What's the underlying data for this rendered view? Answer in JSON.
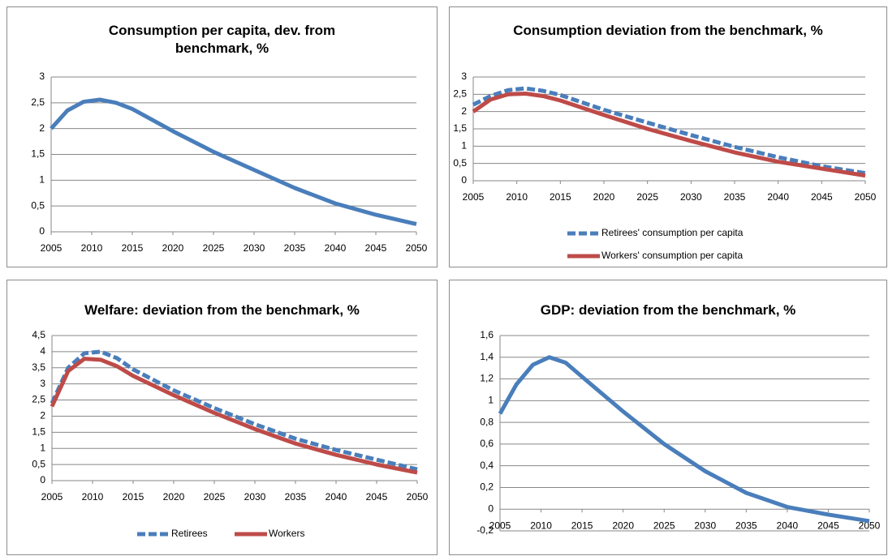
{
  "chart_data": [
    {
      "type": "line",
      "title": "Consumption per capita, dev. from benchmark, %",
      "x": [
        2005,
        2007,
        2009,
        2011,
        2013,
        2015,
        2020,
        2025,
        2030,
        2035,
        2040,
        2045,
        2050
      ],
      "values": [
        2.0,
        2.35,
        2.52,
        2.56,
        2.5,
        2.38,
        1.95,
        1.55,
        1.2,
        0.85,
        0.55,
        0.33,
        0.15
      ],
      "color": "#4a7ebb",
      "grid": true,
      "xlim": [
        2005,
        2050
      ],
      "xticks": [
        2005,
        2010,
        2015,
        2020,
        2025,
        2030,
        2035,
        2040,
        2045,
        2050
      ],
      "ylim": [
        0,
        3
      ],
      "yticks": [
        0,
        {
          "value": 0.5,
          "label": "0,5"
        },
        1,
        {
          "value": 1.5,
          "label": "1,5"
        },
        2,
        {
          "value": 2.5,
          "label": "2,5"
        },
        3
      ]
    },
    {
      "type": "line",
      "title": "Consumption deviation from the benchmark, %",
      "x": [
        2005,
        2007,
        2009,
        2011,
        2013,
        2015,
        2020,
        2025,
        2030,
        2035,
        2040,
        2045,
        2050
      ],
      "series": [
        {
          "name": "Retirees' consumption per capita",
          "color": "#4a7ebb",
          "dashed": true,
          "values": [
            2.2,
            2.45,
            2.62,
            2.67,
            2.6,
            2.48,
            2.05,
            1.68,
            1.32,
            0.98,
            0.68,
            0.42,
            0.22
          ]
        },
        {
          "name": "Workers' consumption per capita",
          "color": "#be4b48",
          "dashed": false,
          "values": [
            2.0,
            2.35,
            2.5,
            2.52,
            2.45,
            2.32,
            1.9,
            1.5,
            1.15,
            0.82,
            0.55,
            0.35,
            0.15
          ]
        }
      ],
      "legend": "bottom",
      "grid": true,
      "xlim": [
        2005,
        2050
      ],
      "xticks": [
        2005,
        2010,
        2015,
        2020,
        2025,
        2030,
        2035,
        2040,
        2045,
        2050
      ],
      "ylim": [
        0,
        3
      ],
      "yticks": [
        0,
        {
          "value": 0.5,
          "label": "0,5"
        },
        1,
        {
          "value": 1.5,
          "label": "1,5"
        },
        2,
        {
          "value": 2.5,
          "label": "2,5"
        },
        3
      ]
    },
    {
      "type": "line",
      "title": "Welfare: deviation from the benchmark, %",
      "x": [
        2005,
        2007,
        2009,
        2011,
        2013,
        2015,
        2020,
        2025,
        2030,
        2035,
        2040,
        2045,
        2050
      ],
      "series": [
        {
          "name": "Retirees",
          "color": "#4a7ebb",
          "dashed": true,
          "values": [
            2.4,
            3.5,
            3.95,
            4.0,
            3.8,
            3.45,
            2.8,
            2.25,
            1.75,
            1.3,
            0.95,
            0.65,
            0.35
          ]
        },
        {
          "name": "Workers",
          "color": "#be4b48",
          "dashed": false,
          "values": [
            2.3,
            3.4,
            3.78,
            3.75,
            3.55,
            3.25,
            2.65,
            2.1,
            1.6,
            1.15,
            0.8,
            0.5,
            0.25
          ]
        }
      ],
      "legend": "bottom",
      "grid": true,
      "xlim": [
        2005,
        2050
      ],
      "xticks": [
        2005,
        2010,
        2015,
        2020,
        2025,
        2030,
        2035,
        2040,
        2045,
        2050
      ],
      "ylim": [
        0,
        4.5
      ],
      "yticks": [
        0,
        {
          "value": 0.5,
          "label": "0,5"
        },
        1,
        {
          "value": 1.5,
          "label": "1,5"
        },
        2,
        {
          "value": 2.5,
          "label": "2,5"
        },
        3,
        {
          "value": 3.5,
          "label": "3,5"
        },
        4,
        {
          "value": 4.5,
          "label": "4,5"
        }
      ]
    },
    {
      "type": "line",
      "title": "GDP: deviation from the benchmark, %",
      "x": [
        2005,
        2007,
        2009,
        2011,
        2013,
        2015,
        2020,
        2025,
        2030,
        2035,
        2040,
        2045,
        2050
      ],
      "values": [
        0.88,
        1.15,
        1.33,
        1.4,
        1.35,
        1.22,
        0.9,
        0.6,
        0.35,
        0.15,
        0.02,
        -0.05,
        -0.11
      ],
      "color": "#4a7ebb",
      "grid": true,
      "xlim": [
        2005,
        2050
      ],
      "xticks": [
        2005,
        2010,
        2015,
        2020,
        2025,
        2030,
        2035,
        2040,
        2045,
        2050
      ],
      "ylim": [
        -0.2,
        1.6
      ],
      "yticks": [
        {
          "value": -0.2,
          "label": "-0,2"
        },
        0,
        {
          "value": 0.2,
          "label": "0,2"
        },
        {
          "value": 0.4,
          "label": "0,4"
        },
        {
          "value": 0.6,
          "label": "0,6"
        },
        {
          "value": 0.8,
          "label": "0,8"
        },
        1,
        {
          "value": 1.2,
          "label": "1,2"
        },
        {
          "value": 1.4,
          "label": "1,4"
        },
        {
          "value": 1.6,
          "label": "1,6"
        }
      ]
    }
  ]
}
